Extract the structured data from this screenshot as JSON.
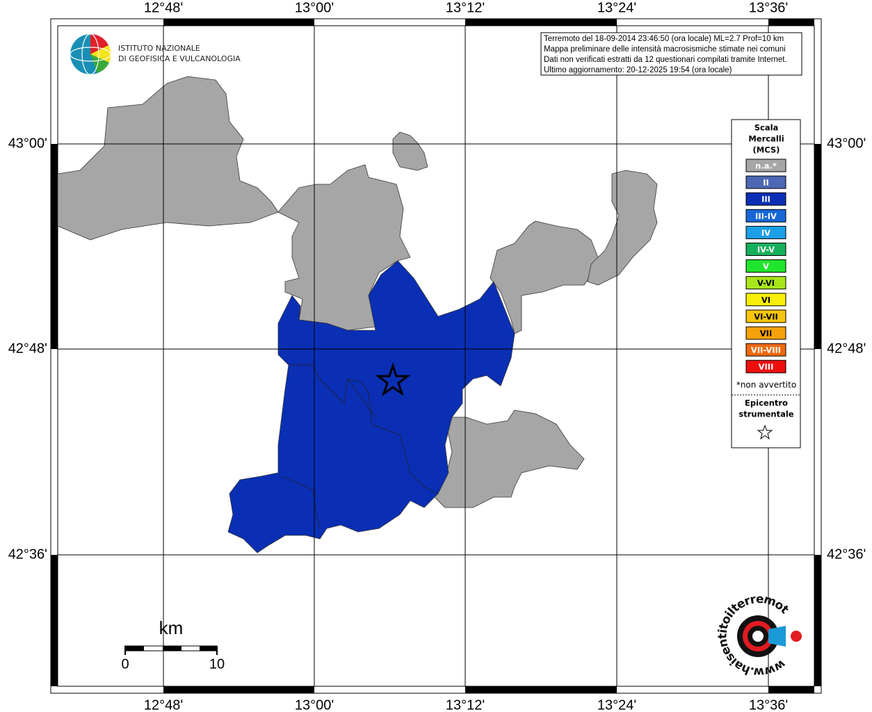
{
  "map": {
    "longitude_labels": [
      "12°48'",
      "13°00'",
      "13°12'",
      "13°24'",
      "13°36'"
    ],
    "latitude_labels": [
      "43°00'",
      "42°48'",
      "42°36'"
    ],
    "info_lines": [
      "Terremoto del 18-09-2014 23:46:50 (ora locale) ML=2.7 Prof=10 km",
      "Mappa preliminare delle intensità macrosismiche stimate nei comuni",
      "Dati non verificati estratti da 12 questionari compilati tramite Internet.",
      "Ultimo aggiornamento: 20-12-2025 19:54 (ora locale)"
    ],
    "institute_lines": [
      "ISTITUTO NAZIONALE",
      "DI GEOFISICA E VULCANOLOGIA"
    ],
    "scale_bar": {
      "unit": "km",
      "labels": [
        "0",
        "10"
      ]
    },
    "site_logo_text": "www.haisentitoilterremoto.it"
  },
  "legend": {
    "title_lines": [
      "Scala",
      "Mercalli",
      "(MCS)"
    ],
    "items": [
      {
        "label": "n.a.*",
        "color": "#a6a6a6"
      },
      {
        "label": "II",
        "color": "#4c68b4"
      },
      {
        "label": "III",
        "color": "#0a2fb4"
      },
      {
        "label": "III-IV",
        "color": "#1766d6"
      },
      {
        "label": "IV",
        "color": "#1c9fe6"
      },
      {
        "label": "IV-V",
        "color": "#16b05c"
      },
      {
        "label": "V",
        "color": "#1fe52c"
      },
      {
        "label": "V-VI",
        "color": "#a8e61c"
      },
      {
        "label": "VI",
        "color": "#f6ef0a"
      },
      {
        "label": "VI-VII",
        "color": "#f7c40c"
      },
      {
        "label": "VII",
        "color": "#f6a10c"
      },
      {
        "label": "VII-VIII",
        "color": "#ef6a0e"
      },
      {
        "label": "VIII",
        "color": "#ee0e0e"
      }
    ],
    "footnote": "*non avvertito",
    "epicenter_lines": [
      "Epicentro",
      "strumentale"
    ]
  }
}
